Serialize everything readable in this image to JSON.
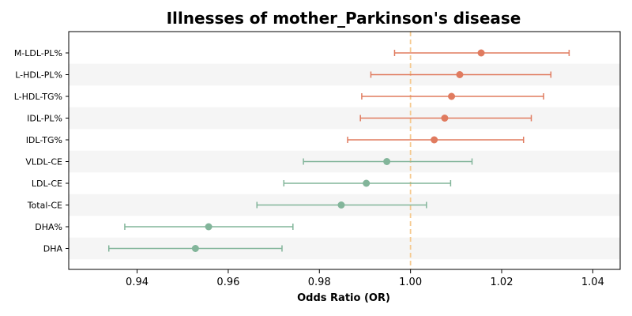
{
  "chart_data": {
    "type": "forest",
    "title": "Illnesses of mother_Parkinson's disease",
    "xlabel": "Odds Ratio (OR)",
    "ylabel": "",
    "xlim": [
      0.925,
      1.046
    ],
    "xticks": [
      0.94,
      0.96,
      0.98,
      1.0,
      1.02,
      1.04
    ],
    "xtick_labels": [
      "0.94",
      "0.96",
      "0.98",
      "1.00",
      "1.02",
      "1.04"
    ],
    "reference_line": 1.0,
    "grid": false,
    "colors": {
      "positive": "#E07B5F",
      "negative": "#82B59A",
      "reference": "#F5C98E",
      "band": "#F5F5F5"
    },
    "rows": [
      {
        "label": "M-LDL-PL%",
        "or": 1.0155,
        "lower": 0.9965,
        "upper": 1.0348
      },
      {
        "label": "L-HDL-PL%",
        "or": 1.0108,
        "lower": 0.9913,
        "upper": 1.0308
      },
      {
        "label": "L-HDL-TG%",
        "or": 1.009,
        "lower": 0.9893,
        "upper": 1.0292
      },
      {
        "label": "IDL-PL%",
        "or": 1.0075,
        "lower": 0.989,
        "upper": 1.0265
      },
      {
        "label": "IDL-TG%",
        "or": 1.0052,
        "lower": 0.9862,
        "upper": 1.0248
      },
      {
        "label": "VLDL-CE",
        "or": 0.9948,
        "lower": 0.9765,
        "upper": 1.0135
      },
      {
        "label": "LDL-CE",
        "or": 0.9903,
        "lower": 0.9722,
        "upper": 1.0088
      },
      {
        "label": "Total-CE",
        "or": 0.9848,
        "lower": 0.9663,
        "upper": 1.0035
      },
      {
        "label": "DHA%",
        "or": 0.9557,
        "lower": 0.9373,
        "upper": 0.9742
      },
      {
        "label": "DHA",
        "or": 0.9528,
        "lower": 0.9338,
        "upper": 0.9718
      }
    ]
  }
}
